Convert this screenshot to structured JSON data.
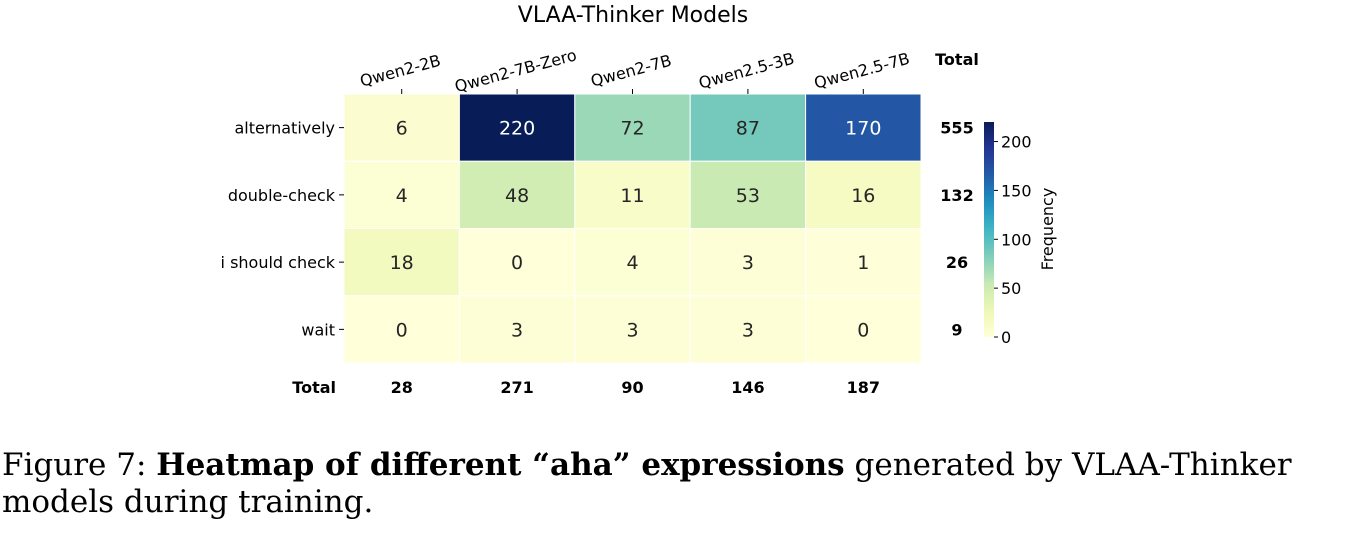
{
  "chart_data": {
    "type": "heatmap",
    "title": "VLAA-Thinker Models",
    "x_categories": [
      "Qwen2-2B",
      "Qwen2-7B-Zero",
      "Qwen2-7B",
      "Qwen2.5-3B",
      "Qwen2.5-7B"
    ],
    "y_categories": [
      "alternatively",
      "double-check",
      "i should check",
      "wait"
    ],
    "values": [
      [
        6,
        220,
        72,
        87,
        170
      ],
      [
        4,
        48,
        11,
        53,
        16
      ],
      [
        18,
        0,
        4,
        3,
        1
      ],
      [
        0,
        3,
        3,
        3,
        0
      ]
    ],
    "row_totals": [
      555,
      132,
      26,
      9
    ],
    "col_totals": [
      28,
      271,
      90,
      146,
      187
    ],
    "totals_label": "Total",
    "colorbar": {
      "label": "Frequency",
      "colormap": "YlGnBu",
      "range": [
        0,
        220
      ],
      "ticks": [
        0,
        50,
        100,
        150,
        200
      ]
    }
  },
  "caption": {
    "prefix": "Figure 7:",
    "bold": "Heatmap of different “aha” expressions",
    "rest": "generated by VLAA-Thinker models during training."
  }
}
